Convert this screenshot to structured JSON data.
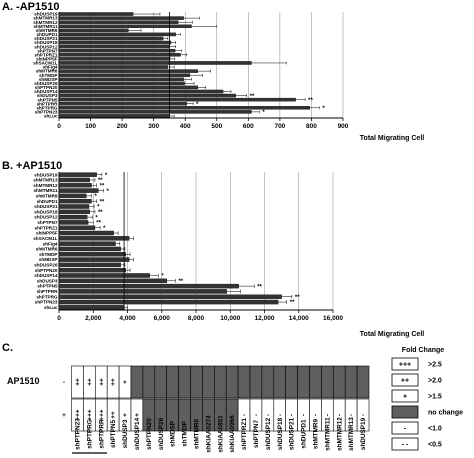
{
  "chart_data": [
    {
      "type": "bar",
      "orientation": "horizontal",
      "panel": "A. -AP1510",
      "xlabel": "Total Migrating Cell",
      "xlim": [
        0,
        900
      ],
      "xticks": [
        "0",
        "100",
        "200",
        "300",
        "400",
        "500",
        "600",
        "700",
        "800",
        "900"
      ],
      "reference_line": 350,
      "categories": [
        "shDUSP19",
        "shMTMR13",
        "shMTMR12",
        "shMTMR11",
        "shMTMR9",
        "shDUPD1",
        "shDUSP21",
        "shDUSP18",
        "shDUSP12",
        "shPTPN7",
        "shPTPRZ1",
        "shINPP5F",
        "shSACM1L",
        "shFig4",
        "shMTMR6",
        "shTMDP",
        "shMDSP",
        "shDUSP26",
        "shPTPN20",
        "shDUSP14",
        "shDUSP3",
        "shPTPN5",
        "shPTPRR",
        "shPTPRG",
        "shPTPN23",
        "shLuc"
      ],
      "values": [
        235,
        395,
        378,
        420,
        220,
        370,
        330,
        355,
        350,
        368,
        385,
        352,
        610,
        345,
        440,
        415,
        395,
        398,
        440,
        520,
        560,
        750,
        405,
        795,
        610,
        350
      ],
      "errors": [
        85,
        50,
        45,
        80,
        40,
        15,
        15,
        15,
        20,
        20,
        20,
        15,
        110,
        20,
        40,
        40,
        25,
        30,
        25,
        25,
        35,
        30,
        20,
        30,
        25,
        15
      ],
      "significance": [
        "",
        "",
        "",
        "",
        "",
        "",
        "",
        "",
        "",
        "",
        "",
        "",
        "",
        "",
        "",
        "",
        "",
        "",
        "",
        "",
        "**",
        "**",
        "*",
        "*",
        "*",
        ""
      ]
    },
    {
      "type": "bar",
      "orientation": "horizontal",
      "panel": "B. +AP1510",
      "xlabel": "Total Migrating Cell",
      "xlim": [
        0,
        16000
      ],
      "xticks": [
        "0",
        "2,000",
        "4,000",
        "6,000",
        "8,000",
        "10,000",
        "12,000",
        "14,000",
        "16,000"
      ],
      "reference_line": 3800,
      "categories": [
        "shDUSP19",
        "shMTMR13",
        "shMTMR12",
        "shMTMR11",
        "shMTMR9",
        "shDUPD1",
        "shDUSP21",
        "shDUSP18",
        "shDUSP12",
        "shPTPN7",
        "shPTPRZ1",
        "shINPP5F",
        "shSACM1L",
        "shFig4",
        "shMTMR6",
        "shTMDP",
        "shMDSP",
        "shDUSP26",
        "shPTPN20",
        "shDUSP14",
        "shDUSP3",
        "shPTPN5",
        "shPTPRR",
        "shPTPRG",
        "shPTPN23",
        "shLuc"
      ],
      "values": [
        2200,
        1800,
        1900,
        2300,
        1600,
        1900,
        1750,
        1800,
        1650,
        1700,
        2100,
        3200,
        4100,
        3300,
        3600,
        3900,
        4100,
        3600,
        3900,
        5300,
        6300,
        10500,
        9800,
        13000,
        12800,
        3800
      ],
      "errors": [
        300,
        300,
        300,
        300,
        300,
        300,
        300,
        300,
        300,
        300,
        300,
        250,
        250,
        250,
        250,
        250,
        250,
        250,
        250,
        500,
        500,
        900,
        800,
        600,
        500,
        200
      ],
      "significance": [
        "*",
        "**",
        "**",
        "*",
        "*",
        "**",
        "*",
        "**",
        "*",
        "**",
        "*",
        "",
        "",
        "",
        "",
        "",
        "",
        "",
        "",
        "*",
        "**",
        "**",
        "",
        "**",
        "**",
        ""
      ]
    },
    {
      "type": "heatmap",
      "panel": "C.",
      "row_header": "AP1510",
      "rows": [
        "-",
        "+"
      ],
      "columns": [
        "shPTPN23",
        "shPTPRG",
        "shPTPRR",
        "shPTPN5",
        "shDUSP3",
        "shDUSP14",
        "shPTPN20",
        "shDUSP26",
        "shMDSP",
        "shTMDP",
        "shMTMR6",
        "shKIAA0274",
        "shKIAA0851",
        "shKIAA0966",
        "shPTPRZ1",
        "shPTPN7",
        "shDUSP12",
        "shDUSP18",
        "shDUSP21",
        "shDUPD1",
        "shMTMR9",
        "shMTMR11",
        "shMTMR12",
        "shMTMR13",
        "shDUSP19"
      ],
      "cells": [
        [
          "++",
          "++",
          "++",
          "++",
          "+",
          "nc",
          "nc",
          "nc",
          "nc",
          "nc",
          "nc",
          "nc",
          "nc",
          "nc",
          "nc",
          "nc",
          "nc",
          "nc",
          "nc",
          "nc",
          "nc",
          "nc",
          "nc",
          "nc",
          "nc"
        ],
        [
          "+++",
          "+++",
          "+++",
          "++",
          "+",
          "+",
          "nc",
          "nc",
          "nc",
          "nc",
          "nc",
          "nc",
          "nc",
          "nc",
          "-",
          "-",
          "-",
          "-",
          "-",
          "-",
          "-",
          "-",
          "-",
          "-",
          "-"
        ]
      ],
      "legend_title": "Fold Change",
      "legend": [
        {
          "key": "+++",
          "symbol": "+++",
          "label": ">2.5"
        },
        {
          "key": "++",
          "symbol": "++",
          "label": ">2.0"
        },
        {
          "key": "+",
          "symbol": "+",
          "label": ">1.5"
        },
        {
          "key": "nc",
          "symbol": "",
          "label": "no change"
        },
        {
          "key": "-",
          "symbol": "-",
          "label": "<1.0"
        },
        {
          "key": "--",
          "symbol": "- -",
          "label": "<0.5"
        }
      ]
    }
  ],
  "colors": {
    "bar": "#333333",
    "bar_edge": "#000000",
    "grid": "#888888",
    "no_change": "#5f5f5f",
    "frame": "#000000"
  }
}
